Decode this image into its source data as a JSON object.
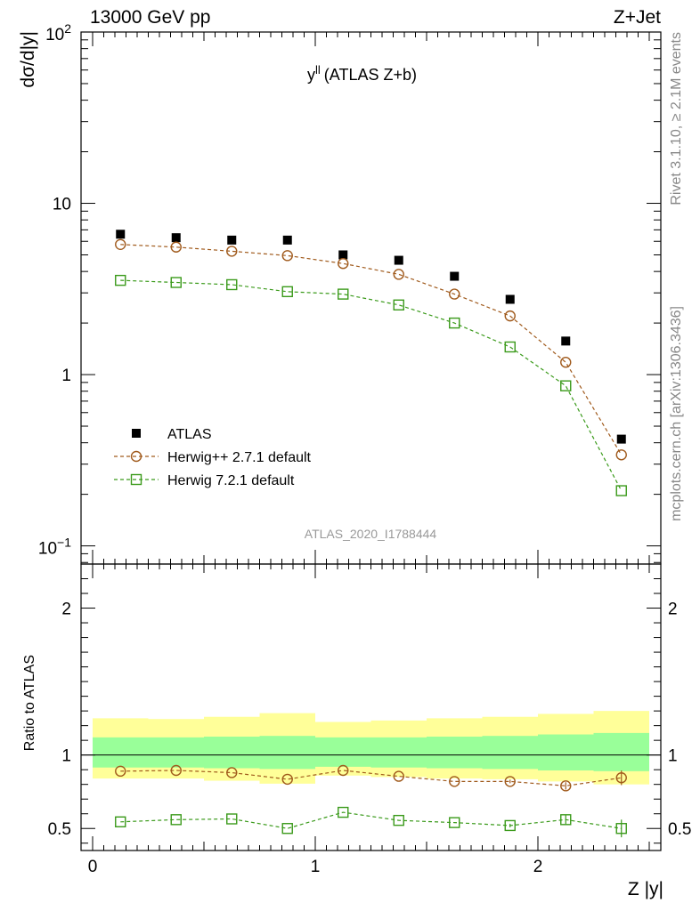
{
  "header": {
    "left": "13000 GeV pp",
    "right": "Z+Jet"
  },
  "side_labels": {
    "top": "Rivet 3.1.10, ≥ 2.1M events",
    "bottom": "mcplots.cern.ch [arXiv:1306.3436]"
  },
  "chart_data": {
    "type": "scatter",
    "title": "y^ll (ATLAS Z+b)",
    "title_main": "y",
    "title_sup": "ll",
    "title_rest": "(ATLAS Z+b)",
    "analysis_label": "ATLAS_2020_I1788444",
    "xlabel": "Z |y|",
    "ylabel": "dσ/d|y|",
    "ratio_ylabel": "Ratio to ATLAS",
    "xlim": [
      -0.05,
      2.55
    ],
    "ylim": [
      0.08,
      100
    ],
    "yscale": "log",
    "ratio_ylim": [
      0.35,
      2.3
    ],
    "x_ticks": [
      0,
      1,
      2
    ],
    "x_tick_labels": [
      "0",
      "1",
      "2"
    ],
    "y_ticks": [
      100,
      10,
      1,
      0.1
    ],
    "y_tick_labels": {
      "base": [
        "10",
        "10",
        "1",
        "10"
      ],
      "exp": [
        "2",
        "",
        "",
        "−1"
      ]
    },
    "ratio_ticks": [
      0.5,
      1,
      2
    ],
    "ratio_tick_labels": [
      "0.5",
      "1",
      "2"
    ],
    "x": [
      0.125,
      0.375,
      0.625,
      0.875,
      1.125,
      1.375,
      1.625,
      1.875,
      2.125,
      2.375
    ],
    "bin_edges": [
      0,
      0.25,
      0.5,
      0.75,
      1.0,
      1.25,
      1.5,
      1.75,
      2.0,
      2.25,
      2.5
    ],
    "legend": {
      "position": "lower-left",
      "entries": [
        "ATLAS",
        "Herwig++ 2.7.1 default",
        "Herwig 7.2.1 default"
      ]
    },
    "series": [
      {
        "name": "ATLAS",
        "marker": "filled-square",
        "color": "#000000",
        "values": [
          6.6,
          6.3,
          6.1,
          6.1,
          5.0,
          4.65,
          3.75,
          2.75,
          1.57,
          0.42
        ]
      },
      {
        "name": "Herwig++ 2.7.1 default",
        "marker": "open-circle",
        "color": "#a05a1c",
        "values": [
          5.75,
          5.55,
          5.25,
          4.95,
          4.45,
          3.85,
          2.95,
          2.2,
          1.18,
          0.34
        ],
        "ratio": [
          0.89,
          0.895,
          0.88,
          0.835,
          0.895,
          0.855,
          0.82,
          0.82,
          0.79,
          0.845
        ],
        "ratio_err": [
          0.005,
          0.005,
          0.005,
          0.006,
          0.007,
          0.008,
          0.01,
          0.012,
          0.025,
          0.05
        ]
      },
      {
        "name": "Herwig 7.2.1 default",
        "marker": "open-square",
        "color": "#3a9a1a",
        "values": [
          3.55,
          3.45,
          3.35,
          3.05,
          2.95,
          2.55,
          2.0,
          1.45,
          0.86,
          0.21
        ],
        "ratio": [
          0.545,
          0.56,
          0.565,
          0.5,
          0.61,
          0.555,
          0.54,
          0.52,
          0.56,
          0.5
        ],
        "ratio_err": [
          0.004,
          0.004,
          0.004,
          0.005,
          0.006,
          0.007,
          0.008,
          0.012,
          0.03,
          0.06
        ]
      }
    ],
    "uncertainty_bands": {
      "inner_color": "#99ff99",
      "outer_color": "#ffff99",
      "inner_lo": [
        0.915,
        0.915,
        0.91,
        0.905,
        0.92,
        0.915,
        0.91,
        0.905,
        0.895,
        0.89
      ],
      "inner_hi": [
        1.12,
        1.12,
        1.125,
        1.13,
        1.12,
        1.12,
        1.125,
        1.13,
        1.14,
        1.15
      ],
      "outer_lo": [
        0.84,
        0.84,
        0.825,
        0.805,
        0.86,
        0.85,
        0.84,
        0.835,
        0.82,
        0.8
      ],
      "outer_hi": [
        1.25,
        1.245,
        1.26,
        1.285,
        1.225,
        1.235,
        1.25,
        1.26,
        1.28,
        1.3
      ]
    }
  }
}
